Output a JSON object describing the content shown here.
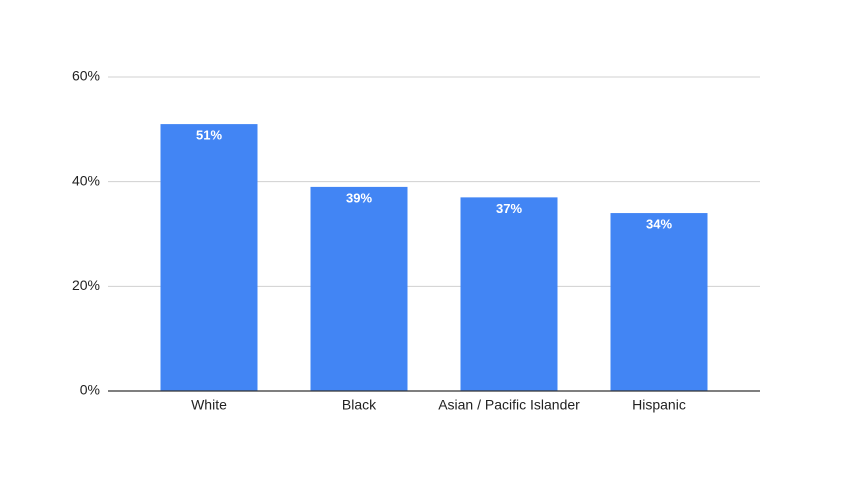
{
  "chart_data": {
    "type": "bar",
    "categories": [
      "White",
      "Black",
      "Asian / Pacific Islander",
      "Hispanic"
    ],
    "values": [
      51,
      39,
      37,
      34
    ],
    "value_labels": [
      "51%",
      "39%",
      "37%",
      "34%"
    ],
    "color": "#4285f4",
    "ylim": [
      0,
      60
    ],
    "yticks": [
      {
        "value": 0,
        "label": "0%"
      },
      {
        "value": 20,
        "label": "20%"
      },
      {
        "value": 40,
        "label": "40%"
      },
      {
        "value": 60,
        "label": "60%"
      }
    ],
    "grid": true
  }
}
